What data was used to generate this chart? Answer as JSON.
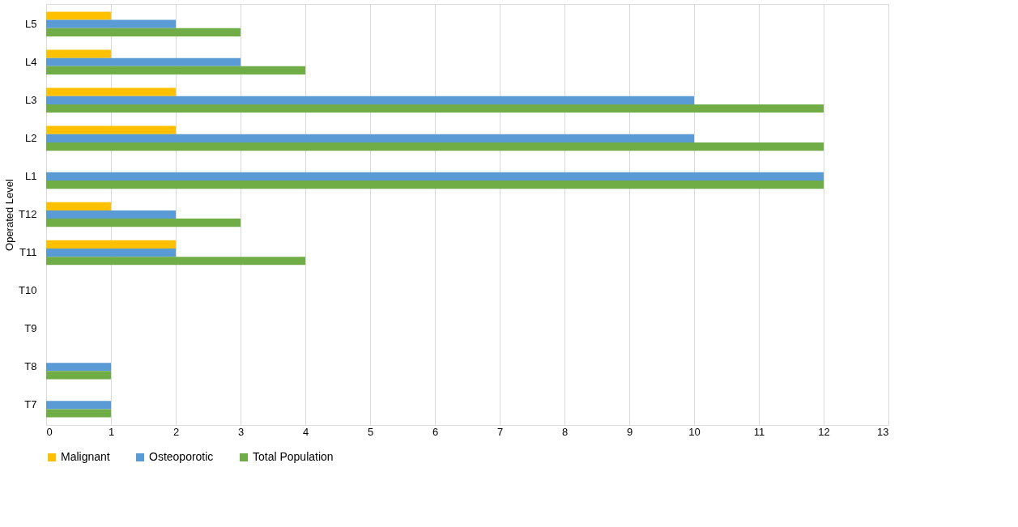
{
  "chart_data": {
    "type": "bar",
    "orientation": "horizontal",
    "ylabel": "Operated Level",
    "categories": [
      "L5",
      "L4",
      "L3",
      "L2",
      "L1",
      "T12",
      "T11",
      "T10",
      "T9",
      "T8",
      "T7"
    ],
    "series": [
      {
        "name": "Malignant",
        "color": "#ffc000",
        "values": [
          1,
          1,
          2,
          2,
          0,
          1,
          2,
          0,
          0,
          0,
          0
        ]
      },
      {
        "name": "Osteoporotic",
        "color": "#5b9bd5",
        "values": [
          2,
          3,
          10,
          10,
          12,
          2,
          2,
          0,
          0,
          1,
          1
        ]
      },
      {
        "name": "Total Population",
        "color": "#70ad47",
        "values": [
          3,
          4,
          12,
          12,
          12,
          3,
          4,
          0,
          0,
          1,
          1
        ]
      }
    ],
    "xlim": [
      0,
      13
    ],
    "xticks": [
      0,
      1,
      2,
      3,
      4,
      5,
      6,
      7,
      8,
      9,
      10,
      11,
      12,
      13
    ],
    "grid": "x",
    "legend": "bottom"
  }
}
